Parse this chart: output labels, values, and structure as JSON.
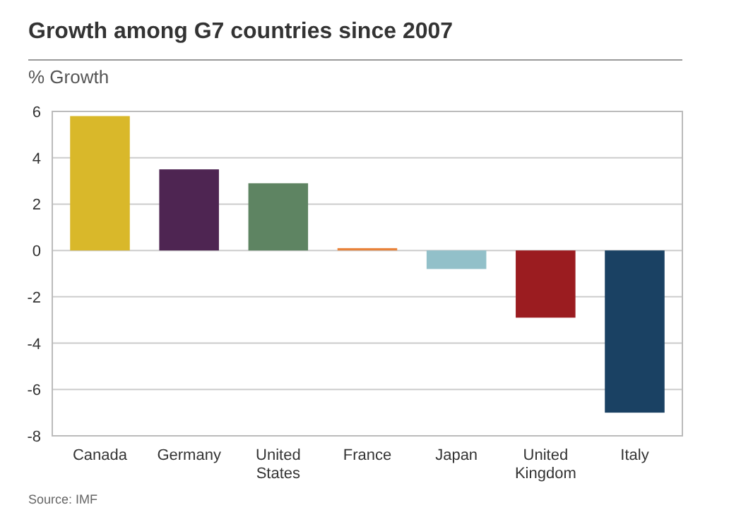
{
  "chart_data": {
    "type": "bar",
    "title": "Growth among G7 countries since 2007",
    "ylabel": "% Growth",
    "categories": [
      "Canada",
      "Germany",
      "United States",
      "France",
      "Japan",
      "United Kingdom",
      "Italy"
    ],
    "values": [
      5.8,
      3.5,
      2.9,
      0.1,
      -0.8,
      -2.9,
      -7.0
    ],
    "colors": [
      "#d9b82a",
      "#4e2552",
      "#5e8462",
      "#e8823a",
      "#92c0c9",
      "#9b1c20",
      "#1a4163"
    ],
    "ylim": [
      -8,
      6
    ],
    "yticks": [
      -8,
      -6,
      -4,
      -2,
      0,
      2,
      4,
      6
    ],
    "grid": "y",
    "annotations": [
      "Source: IMF"
    ]
  }
}
